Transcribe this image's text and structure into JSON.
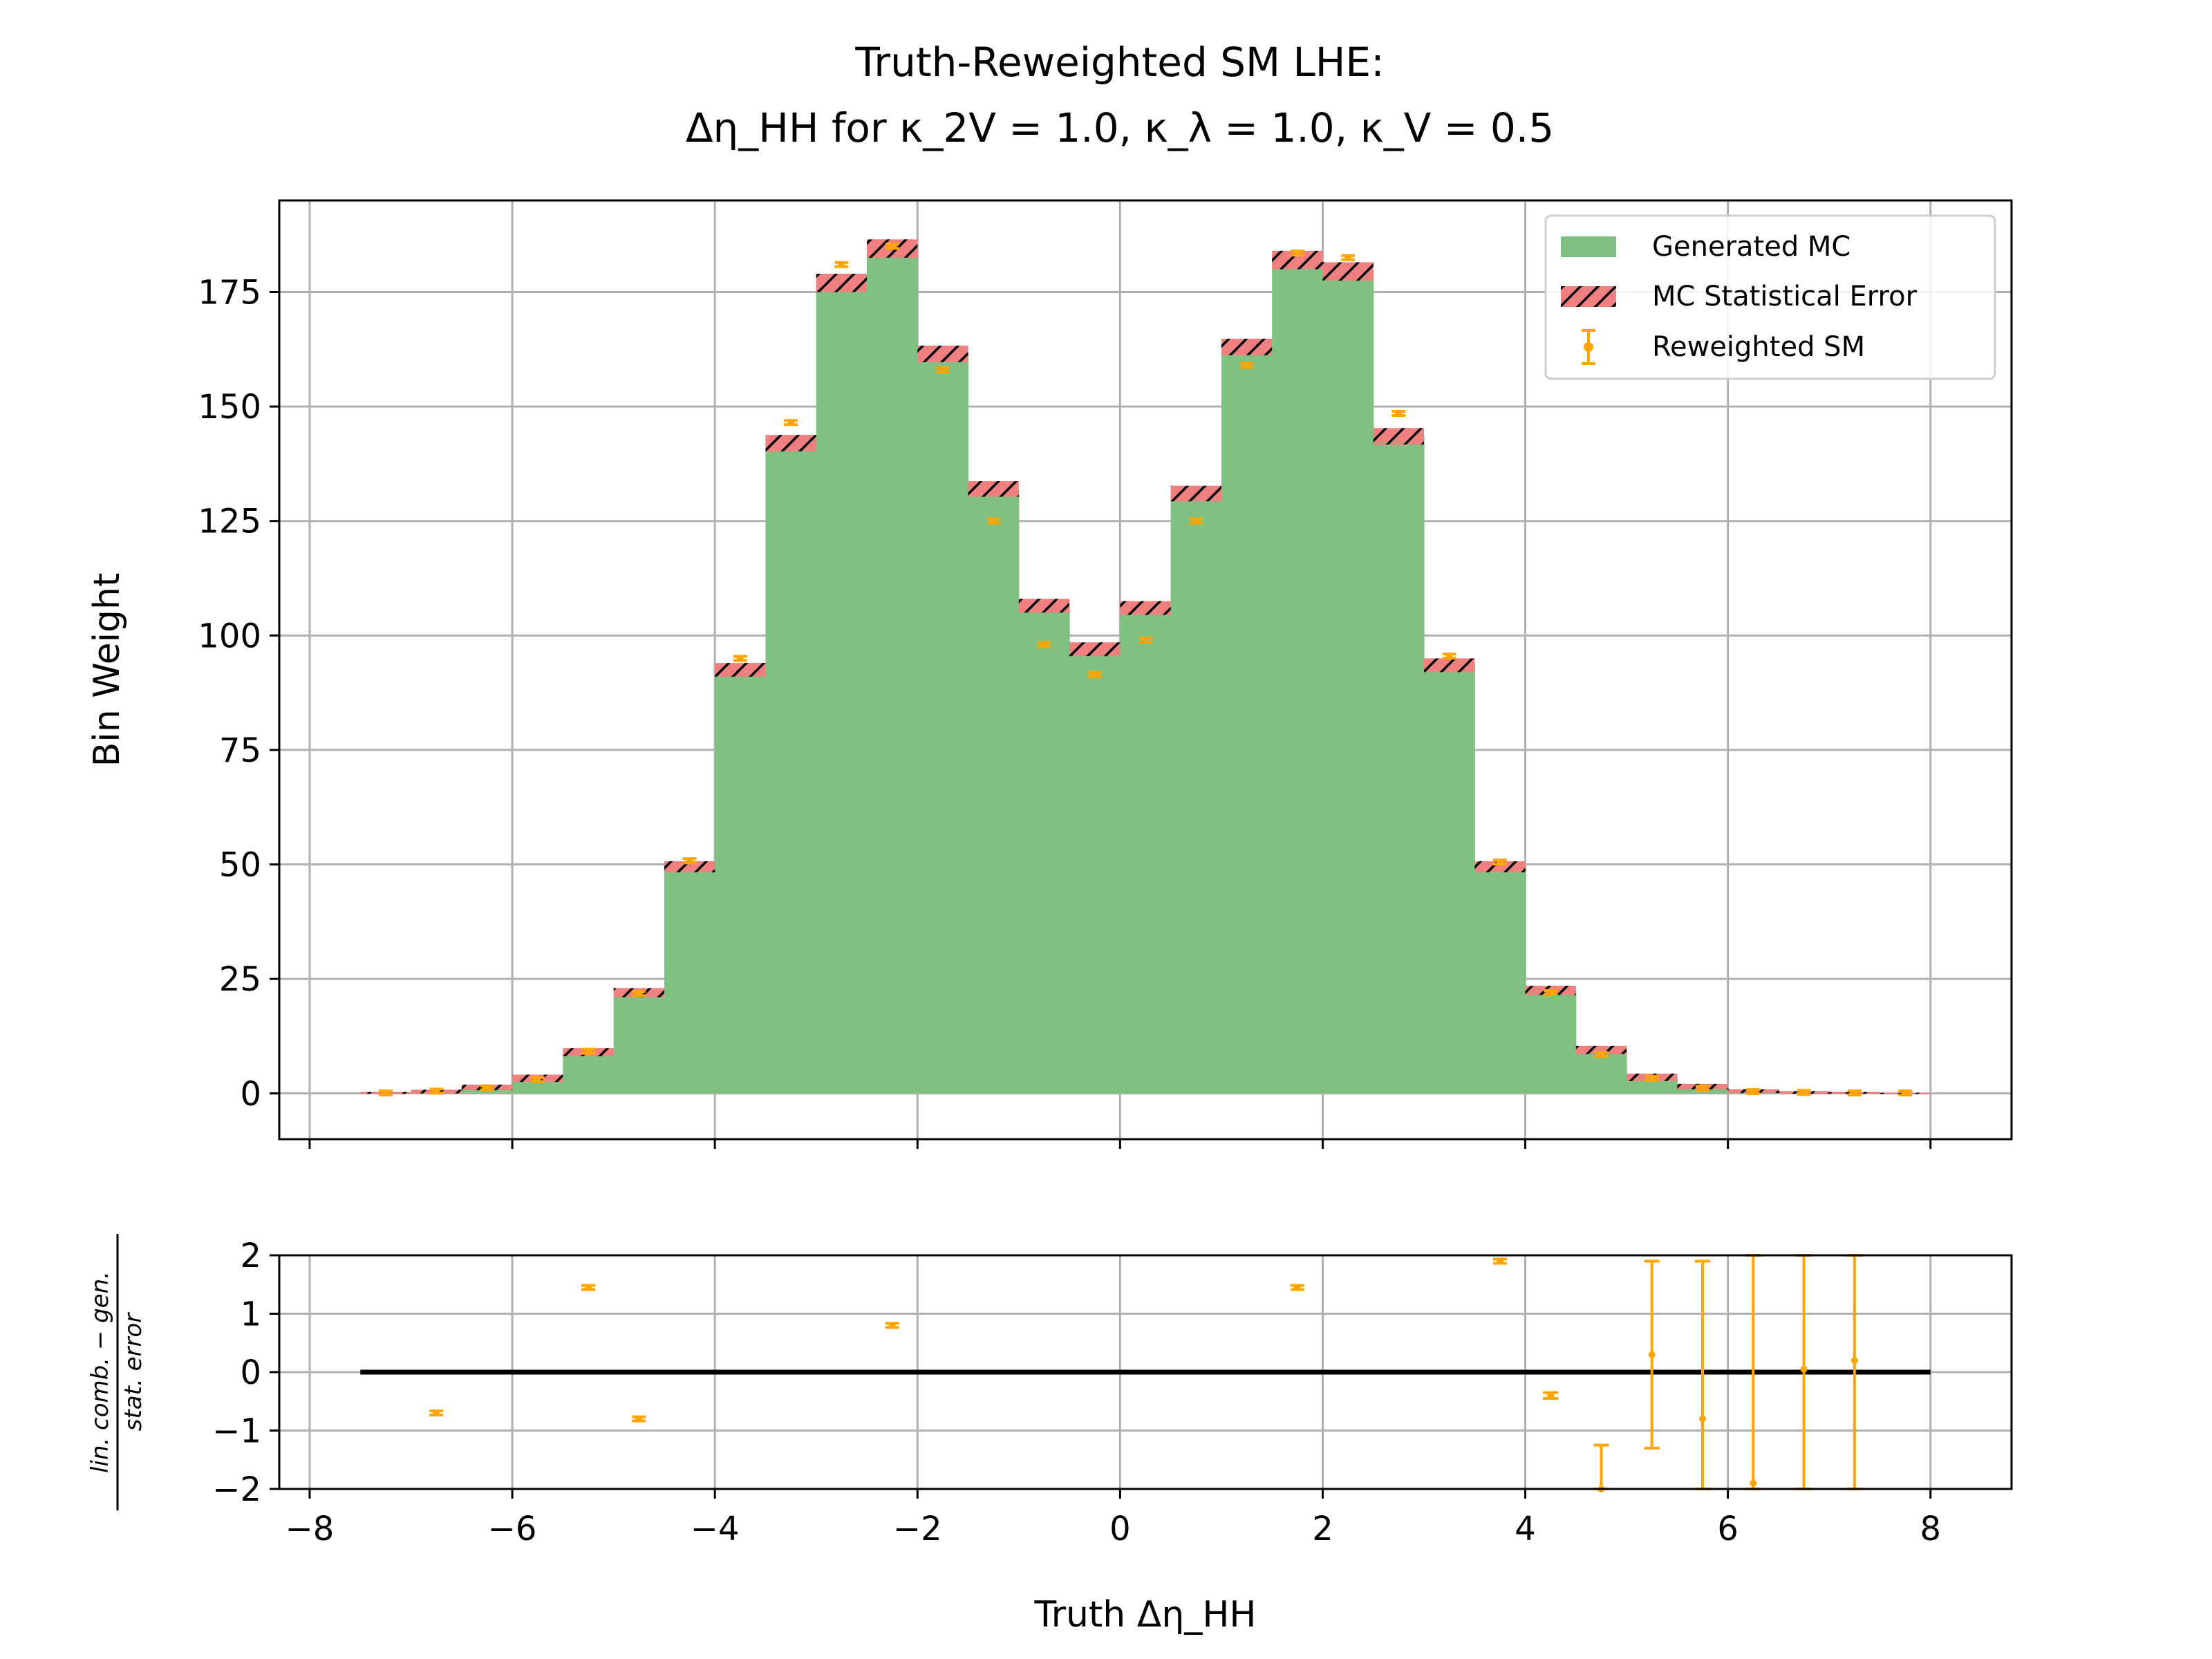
{
  "chart_data": {
    "type": "bar",
    "title_line1": "Truth-Reweighted SM LHE:",
    "title_line2": "Δη_HH for κ_2V = 1.0, κ_λ = 1.0, κ_V = 0.5",
    "xlabel": "Truth Δη_HH",
    "ylabel": "Bin Weight",
    "ratio_ylabel_num": "lin. comb. − gen.",
    "ratio_ylabel_den": "stat. error",
    "xlim": [
      -8.3,
      8.8
    ],
    "ylim": [
      -10,
      195
    ],
    "ratio_ylim": [
      -2,
      2
    ],
    "x_ticks": [
      -8,
      -6,
      -4,
      -2,
      0,
      2,
      4,
      6,
      8
    ],
    "x_tick_labels": [
      "−8",
      "−6",
      "−4",
      "−2",
      "0",
      "2",
      "4",
      "6",
      "8"
    ],
    "y_ticks": [
      0,
      25,
      50,
      75,
      100,
      125,
      150,
      175
    ],
    "y_tick_labels": [
      "0",
      "25",
      "50",
      "75",
      "100",
      "125",
      "150",
      "175"
    ],
    "ratio_y_ticks": [
      -2,
      -1,
      0,
      1,
      2
    ],
    "ratio_y_tick_labels": [
      "−2",
      "−1",
      "0",
      "1",
      "2"
    ],
    "grid": true,
    "legend_position": "top-right",
    "colors": {
      "generated": "#80c080",
      "staterr": "#f08080",
      "reweighted": "#ffa500",
      "reference_line": "#000000"
    },
    "bin_edges": [
      -7.5,
      -7.0,
      -6.5,
      -6.0,
      -5.5,
      -5.0,
      -4.5,
      -4.0,
      -3.5,
      -3.0,
      -2.5,
      -2.0,
      -1.5,
      -1.0,
      -0.5,
      0.0,
      0.5,
      1.0,
      1.5,
      2.0,
      2.5,
      3.0,
      3.5,
      4.0,
      4.5,
      5.0,
      5.5,
      6.0,
      6.5,
      7.0,
      7.5,
      8.0
    ],
    "series": [
      {
        "name": "Generated MC",
        "values": [
          0.1,
          0.4,
          1.3,
          3.3,
          9.0,
          22.0,
          49.5,
          92.5,
          142.0,
          177.0,
          184.5,
          161.5,
          132.0,
          106.5,
          97.0,
          106.0,
          131.0,
          163.0,
          182.0,
          179.5,
          143.5,
          93.5,
          49.5,
          22.5,
          9.5,
          3.5,
          1.5,
          0.5,
          0.2,
          0.1,
          0.05
        ]
      },
      {
        "name": "MC Statistical Error",
        "values": [
          0.2,
          0.4,
          0.6,
          0.8,
          0.9,
          1.0,
          1.2,
          1.5,
          1.8,
          2.0,
          2.0,
          1.8,
          1.7,
          1.5,
          1.5,
          1.5,
          1.7,
          1.8,
          2.0,
          2.0,
          1.8,
          1.5,
          1.2,
          1.0,
          0.9,
          0.8,
          0.6,
          0.4,
          0.3,
          0.2,
          0.1
        ]
      },
      {
        "name": "Reweighted SM",
        "values": [
          0.1,
          0.5,
          1.2,
          3.0,
          9.2,
          21.8,
          50.8,
          95.0,
          146.5,
          181.0,
          185.0,
          158.0,
          125.0,
          98.0,
          91.5,
          99.0,
          125.0,
          159.0,
          183.5,
          182.5,
          148.5,
          95.5,
          50.5,
          22.0,
          8.5,
          3.3,
          1.1,
          0.4,
          0.2,
          0.1,
          0.1
        ]
      }
    ],
    "ratio": {
      "x": [
        -6.75,
        -5.25,
        -4.75,
        -2.25,
        1.75,
        3.75,
        4.25,
        4.75,
        5.25,
        5.75,
        6.25,
        6.75,
        7.25
      ],
      "values": [
        -0.7,
        1.45,
        -0.8,
        0.8,
        1.45,
        1.9,
        -0.4,
        -2.0,
        0.3,
        -0.8,
        -1.9,
        0.05,
        0.2
      ],
      "err_low": [
        0.0,
        0.0,
        0.0,
        0.0,
        0.0,
        0.0,
        0.05,
        0.0,
        1.6,
        1.2,
        0.1,
        2.05,
        2.2
      ],
      "err_high": [
        0.0,
        0.0,
        0.0,
        0.0,
        0.0,
        0.0,
        0.05,
        0.75,
        1.6,
        2.7,
        3.9,
        1.95,
        1.8
      ]
    },
    "reference_line": {
      "x_from": -7.5,
      "x_to": 8.0,
      "y": 0
    }
  }
}
